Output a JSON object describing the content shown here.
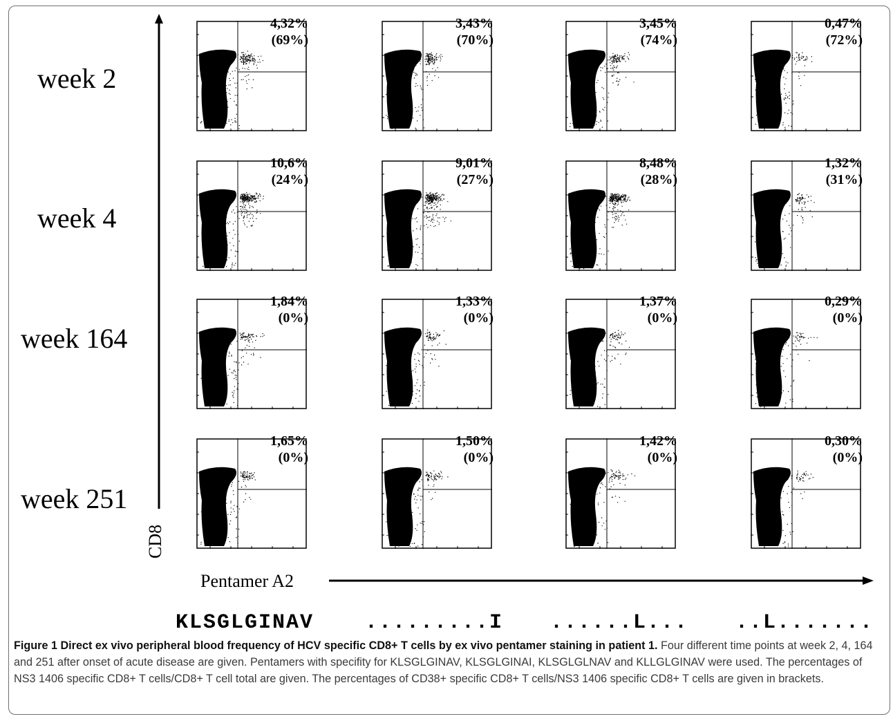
{
  "figure": {
    "rows": [
      {
        "label": "week 2",
        "panels": [
          {
            "pct": "4,32%",
            "cd38": "(69%)"
          },
          {
            "pct": "3,43%",
            "cd38": "(70%)"
          },
          {
            "pct": "3,45%",
            "cd38": "(74%)"
          },
          {
            "pct": "0,47%",
            "cd38": "(72%)"
          }
        ]
      },
      {
        "label": "week 4",
        "panels": [
          {
            "pct": "10,6%",
            "cd38": "(24%)"
          },
          {
            "pct": "9,01%",
            "cd38": "(27%)"
          },
          {
            "pct": "8,48%",
            "cd38": "(28%)"
          },
          {
            "pct": "1,32%",
            "cd38": "(31%)"
          }
        ]
      },
      {
        "label": "week 164",
        "panels": [
          {
            "pct": "1,84%",
            "cd38": "(0%)"
          },
          {
            "pct": "1,33%",
            "cd38": "(0%)"
          },
          {
            "pct": "1,37%",
            "cd38": "(0%)"
          },
          {
            "pct": "0,29%",
            "cd38": "(0%)"
          }
        ]
      },
      {
        "label": "week 251",
        "panels": [
          {
            "pct": "1,65%",
            "cd38": "(0%)"
          },
          {
            "pct": "1,50%",
            "cd38": "(0%)"
          },
          {
            "pct": "1,42%",
            "cd38": "(0%)"
          },
          {
            "pct": "0,30%",
            "cd38": "(0%)"
          }
        ]
      }
    ],
    "y_axis_label": "CD8",
    "x_axis_label": "Pentamer A2",
    "sequences": [
      "KLSGLGINAV",
      ".........I",
      "......L...",
      "..L......."
    ]
  },
  "caption": {
    "title": "Figure 1 Direct ex vivo peripheral blood frequency of HCV specific CD8+ T cells by ex vivo pentamer staining in patient 1.",
    "body": "Four different time points at week 2, 4, 164 and 251 after onset of acute disease are given. Pentamers with specifity for KLSGLGINAV, KLSGLGINAI, KLSGLGLNAV and KLLGLGINAV were used. The percentages of NS3 1406 specific CD8+ T cells/CD8+ T cell total are given. The percentages of CD38+ specific CD8+ T cells/NS3 1406 specific CD8+ T cells are given in brackets."
  }
}
